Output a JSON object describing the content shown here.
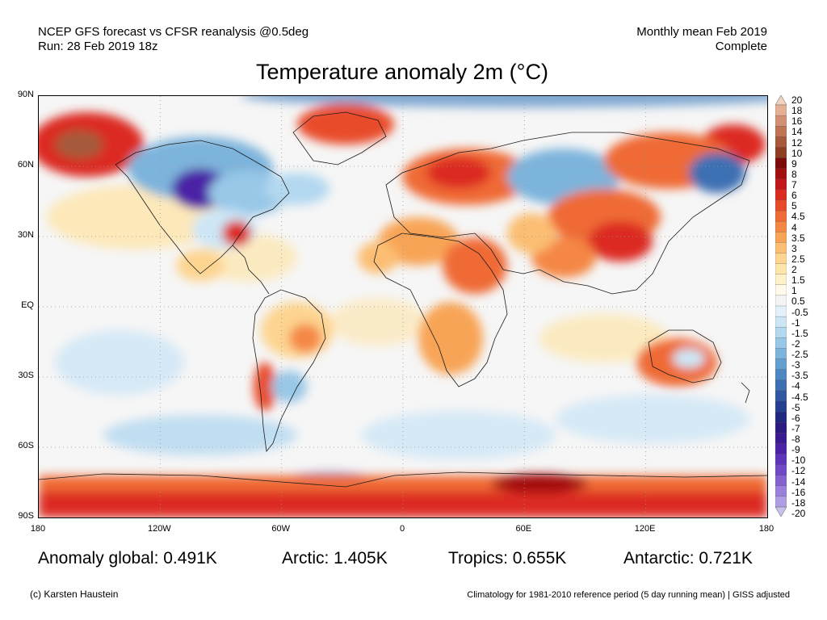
{
  "header": {
    "left_line1": "NCEP GFS forecast vs CFSR reanalysis @0.5deg",
    "left_line2": "Run: 28 Feb 2019 18z",
    "right_line1": "Monthly mean Feb 2019",
    "right_line2": "Complete"
  },
  "title": "Temperature anomaly 2m (°C)",
  "lat_labels": [
    "90N",
    "60N",
    "30N",
    "EQ",
    "30S",
    "60S",
    "90S"
  ],
  "lon_labels": [
    "180",
    "120W",
    "60W",
    "0",
    "60E",
    "120E",
    "180"
  ],
  "colorbar": {
    "labels": [
      "20",
      "18",
      "16",
      "14",
      "12",
      "10",
      "9",
      "8",
      "7",
      "6",
      "5",
      "4.5",
      "4",
      "3.5",
      "3",
      "2.5",
      "2",
      "1.5",
      "1",
      "0.5",
      "-0.5",
      "-1",
      "-1.5",
      "-2",
      "-2.5",
      "-3",
      "-3.5",
      "-4",
      "-4.5",
      "-5",
      "-6",
      "-7",
      "-8",
      "-9",
      "-10",
      "-12",
      "-14",
      "-16",
      "-18",
      "-20"
    ],
    "colors": [
      "#f3d3c0",
      "#e5b094",
      "#d29173",
      "#bf7453",
      "#a65a3a",
      "#8e3f22",
      "#7d0b0b",
      "#a30f0f",
      "#c3161a",
      "#dc2a20",
      "#e84b2b",
      "#ef6a35",
      "#f48744",
      "#f8a457",
      "#fbbe72",
      "#fdd490",
      "#fee5aa",
      "#fff1c8",
      "#fffaeb",
      "#f4f4f4",
      "#e4f1fb",
      "#cde6f6",
      "#b3d8f0",
      "#98c7e7",
      "#7db4dc",
      "#649fd0",
      "#4e88c2",
      "#3d70b3",
      "#2f58a1",
      "#254090",
      "#21287f",
      "#2b1b80",
      "#3a1a90",
      "#4b22a6",
      "#5d34ba",
      "#7049c6",
      "#8462d0",
      "#9a7fdb",
      "#b09ee4",
      "#c8c0ee"
    ]
  },
  "stats": {
    "global": "Anomaly global: 0.491K",
    "arctic": "Arctic: 1.405K",
    "tropics": "Tropics: 0.655K",
    "antarctic": "Antarctic: 0.721K"
  },
  "footer": {
    "left": "(c) Karsten Haustein",
    "right": "Climatology for 1981-2010 reference period (5 day running mean) | GISS adjusted"
  }
}
